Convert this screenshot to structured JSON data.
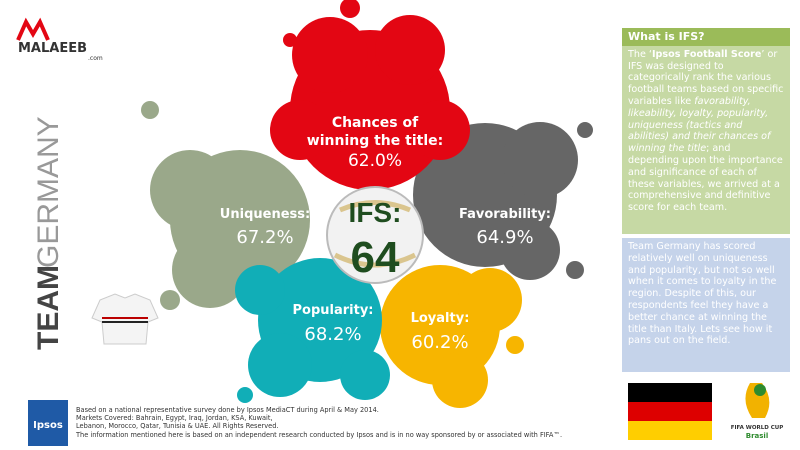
{
  "logo": {
    "name": "MALAEEB",
    "domain": ".com"
  },
  "team_title": [
    "TEAM",
    "GERMANY"
  ],
  "score": {
    "label": "IFS:",
    "value": "64"
  },
  "metrics": [
    {
      "label": [
        "Chances of",
        "winning the title:"
      ],
      "value": "62.0%"
    },
    {
      "label": [
        "Uniqueness:"
      ],
      "value": "67.2%"
    },
    {
      "label": [
        "Favorability:"
      ],
      "value": "64.9%"
    },
    {
      "label": [
        "Popularity:"
      ],
      "value": "68.2%"
    },
    {
      "label": [
        "Loyalty:"
      ],
      "value": "60.2%"
    }
  ],
  "sidebar": {
    "heading": "What is IFS?",
    "body": [
      "The ‘",
      "Ipsos Football Score",
      "’ or IFS was designed to categorically rank the various football teams based on specific variables like ",
      "favorability, likeability, loyalty, popularity, uniqueness (tactics and abilities) and their chances of winning the title",
      "; and depending upon the importance and significance of each of these variables, we arrived at a comprehensive and definitive score for each team."
    ],
    "summary": "Team Germany has scored relatively well on uniqueness and popularity, but not so well when it comes to loyalty in the region. Despite of this, our respondents feel they have a better chance at winning the title than Italy. Lets see how it pans out on the field."
  },
  "world_cup_logo": {
    "line1": "FIFA WORLD CUP",
    "line2": "Brasil"
  },
  "footer": {
    "brand": "Ipsos",
    "lines": [
      "Based on a national representative survey done by Ipsos MediaCT during April & May 2014.",
      "Markets Covered: Bahrain, Egypt, Iraq, Jordan, KSA, Kuwait,",
      "Lebanon, Morocco, Qatar, Tunisia & UAE. All Rights Reserved.",
      "The information mentioned here is based on an independent research conducted by Ipsos and is in no way sponsored by or associated with FIFA™."
    ]
  }
}
